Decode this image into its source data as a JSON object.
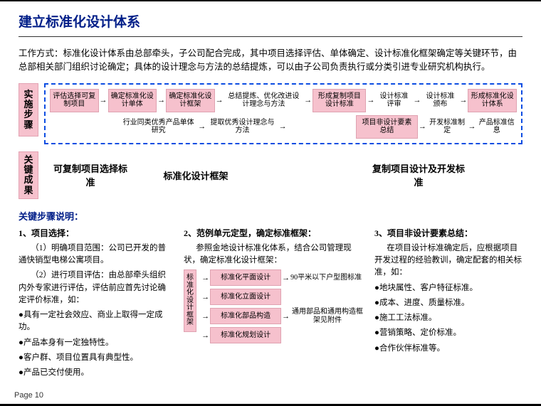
{
  "title": "建立标准化设计体系",
  "intro": "工作方式：标准化设计体系由总部牵头，子公司配合完成，其中项目选择评估、单体确定、设计标准化框架确定等关键环节，由总部相关部门组织讨论确定；具体的设计理念与方法的总结提炼，可以由子公司负责执行或分类引进专业研究机构执行。",
  "flow_label": "实施步骤",
  "flow": {
    "row1": [
      {
        "t": "评估选择可复制项目",
        "box": true
      },
      {
        "t": "确定标准化设计单体",
        "box": true
      },
      {
        "t": "确定标准化设计框架",
        "box": true
      },
      {
        "t": "总结提炼、优化改进设计理念与方法",
        "box": false
      },
      {
        "t": "形成复制项目设计标准",
        "box": true
      },
      {
        "t": "设计标准评审",
        "box": false
      },
      {
        "t": "设计标准颁布",
        "box": false
      },
      {
        "t": "形成标准化设计体系",
        "box": true
      }
    ],
    "row2": [
      {
        "t": "行业同类优秀产品单体研究",
        "box": false
      },
      {
        "t": "提取优秀设计理念与方法",
        "box": false
      },
      {
        "t": "项目非设计要素总结",
        "box": true
      },
      {
        "t": "开发标准制定",
        "box": false
      },
      {
        "t": "产品标准信息",
        "box": false
      }
    ]
  },
  "kr_label": "关键成果",
  "kr_items": [
    "可复制项目选择标准",
    "标准化设计框架",
    "复制项目设计及开发标准"
  ],
  "section_head": "关键步骤说明：",
  "col1": {
    "head": "1、项目选择：",
    "p1": "（1）明确项目范围：公司已开发的普通快销型电梯公寓项目。",
    "p2": "（2）进行项目评估：由总部牵头组织内外专家进行评估，评估前应首先讨论确定评价标准，如：",
    "b": [
      "●具有一定社会效应、商业上取得一定成功。",
      "●产品本身有一定独特性。",
      "●客户群、项目位置具有典型性。",
      "●产品已交付使用。"
    ]
  },
  "col2": {
    "head": "2、范例单元定型，确定标准框架：",
    "p1": "参照金地设计标准化体系，结合公司管理现状，确定标准化设计框架：",
    "frame_label": "标准化设计框架",
    "rows": [
      {
        "box": "标准化平面设计",
        "out": "90平米以下户型图标准"
      },
      {
        "box": "标准化立面设计",
        "out": ""
      },
      {
        "box": "标准化部品构造",
        "out": "通用部品和通用构造框架见附件"
      },
      {
        "box": "标准化规划设计",
        "out": ""
      }
    ]
  },
  "col3": {
    "head": "3、项目非设计要素总结：",
    "p1": "在项目设计标准确定后，应根据项目开发过程的经验教训，确定配套的相关标准，如：",
    "b": [
      "●地块属性、客户特征标准。",
      "●成本、进度、质量标准。",
      "●施工工法标准。",
      "●营销策略、定价标准。",
      "●合作伙伴标准等。"
    ]
  },
  "pagenum": "Page  10",
  "colors": {
    "pink": "#f6c1cd",
    "title": "#001e88",
    "dash": "#0c4de2"
  }
}
